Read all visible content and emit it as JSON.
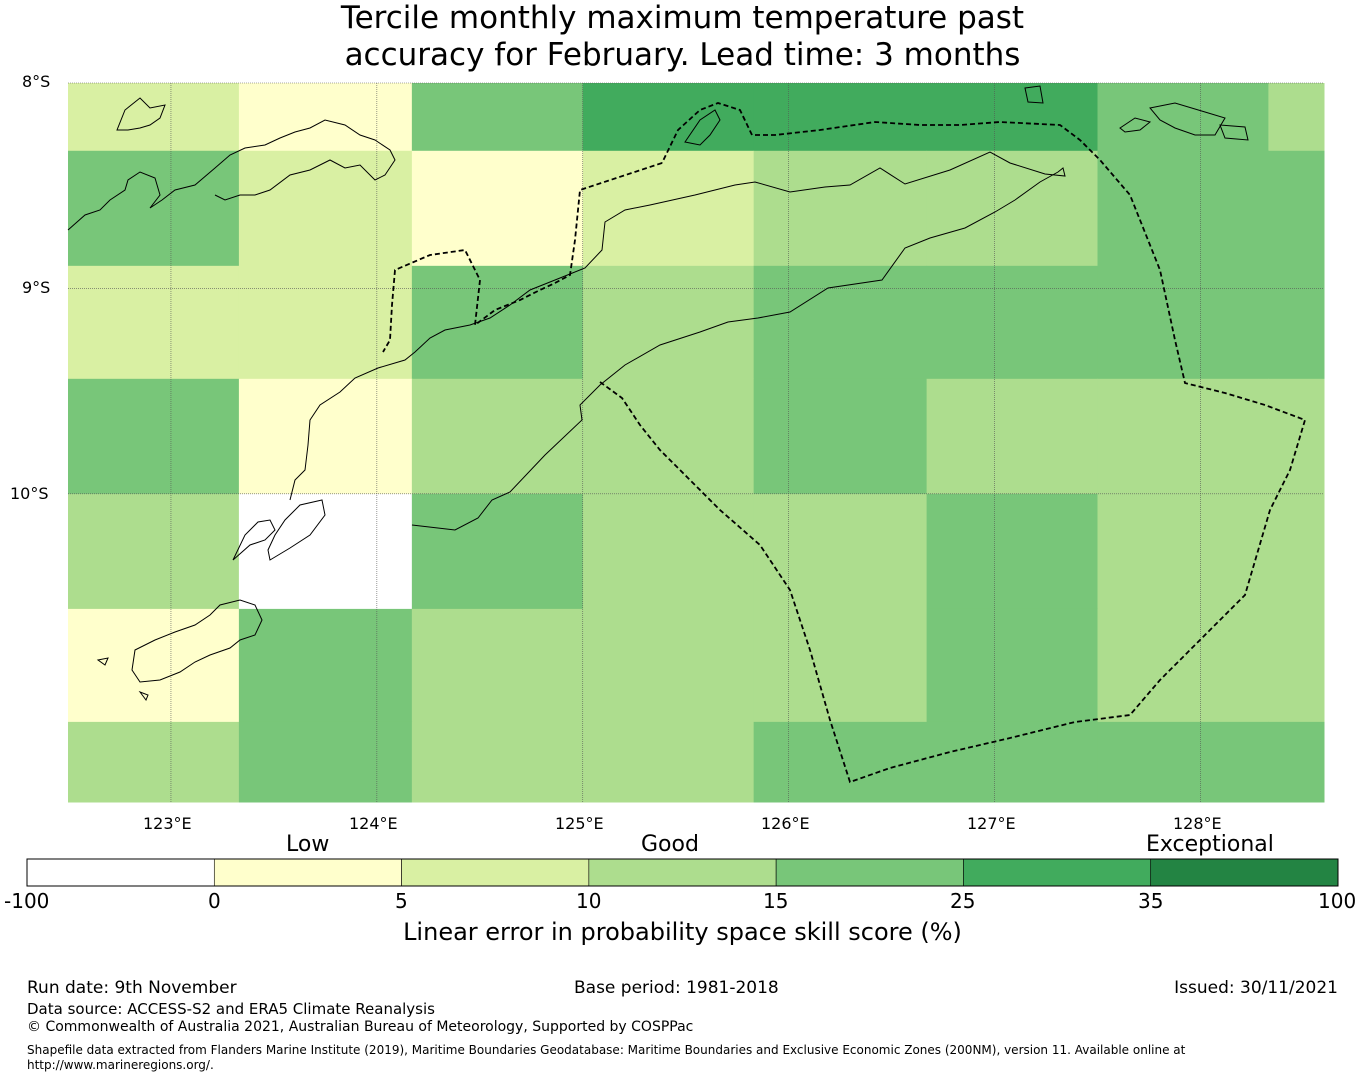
{
  "title": {
    "line1": "Tercile monthly maximum temperature past",
    "line2": "accuracy for February. Lead time: 3 months"
  },
  "map": {
    "lat_labels": [
      "8°S",
      "9°S",
      "10°S"
    ],
    "lon_labels": [
      "123°E",
      "124°E",
      "125°E",
      "126°E",
      "127°E",
      "128°E"
    ],
    "lon_range": [
      122.5,
      128.6
    ],
    "lat_range": [
      -11.5,
      -8.0
    ],
    "grid_lons": [
      123,
      124,
      125,
      126,
      127,
      128
    ],
    "grid_lats": [
      -8,
      -9,
      -10
    ],
    "col_edges": [
      122.5,
      123.33,
      124.17,
      125.0,
      125.83,
      126.67,
      127.5,
      128.33,
      128.6
    ],
    "row_edges": [
      -8.0,
      -8.33,
      -8.89,
      -9.44,
      -10.0,
      -10.56,
      -11.11,
      -11.5
    ],
    "skill_class_grid": [
      [
        2,
        1,
        4,
        5,
        5,
        5,
        4,
        3
      ],
      [
        4,
        2,
        1,
        2,
        3,
        3,
        4,
        4
      ],
      [
        2,
        2,
        4,
        3,
        4,
        4,
        4,
        4
      ],
      [
        4,
        1,
        3,
        3,
        4,
        3,
        3,
        3
      ],
      [
        3,
        0,
        4,
        3,
        3,
        4,
        3,
        3
      ],
      [
        1,
        4,
        3,
        3,
        3,
        4,
        3,
        3
      ],
      [
        3,
        4,
        3,
        3,
        4,
        4,
        4,
        4
      ]
    ]
  },
  "colorbar": {
    "categories": [
      "Low",
      "Good",
      "Exceptional"
    ],
    "ticks": [
      "-100",
      "0",
      "5",
      "10",
      "15",
      "25",
      "35",
      "100"
    ],
    "bins": [
      {
        "from": -100,
        "to": 0,
        "color": "#ffffff"
      },
      {
        "from": 0,
        "to": 5,
        "color": "#ffffcc"
      },
      {
        "from": 5,
        "to": 10,
        "color": "#d9f0a3"
      },
      {
        "from": 10,
        "to": 15,
        "color": "#addd8e"
      },
      {
        "from": 15,
        "to": 25,
        "color": "#78c679"
      },
      {
        "from": 25,
        "to": 35,
        "color": "#41ab5d"
      },
      {
        "from": 35,
        "to": 100,
        "color": "#238443"
      }
    ],
    "label": "Linear error in probability space skill score (%)"
  },
  "footer": {
    "run_date": "Run date: 9th November",
    "base_period": "Base period: 1981-2018",
    "issued": "Issued: 30/11/2021",
    "data_source": "Data source: ACCESS-S2 and ERA5 Climate Reanalysis",
    "copyright": "© Commonwealth of Australia 2021, Australian Bureau of Meteorology, Supported by COSPPac",
    "shapefile_line1": "Shapefile data extracted from Flanders Marine Institute (2019), Maritime Boundaries Geodatabase: Maritime Boundaries and Exclusive Economic Zones (200NM), version 11. Available online at",
    "shapefile_line2": "http://www.marineregions.org/."
  }
}
